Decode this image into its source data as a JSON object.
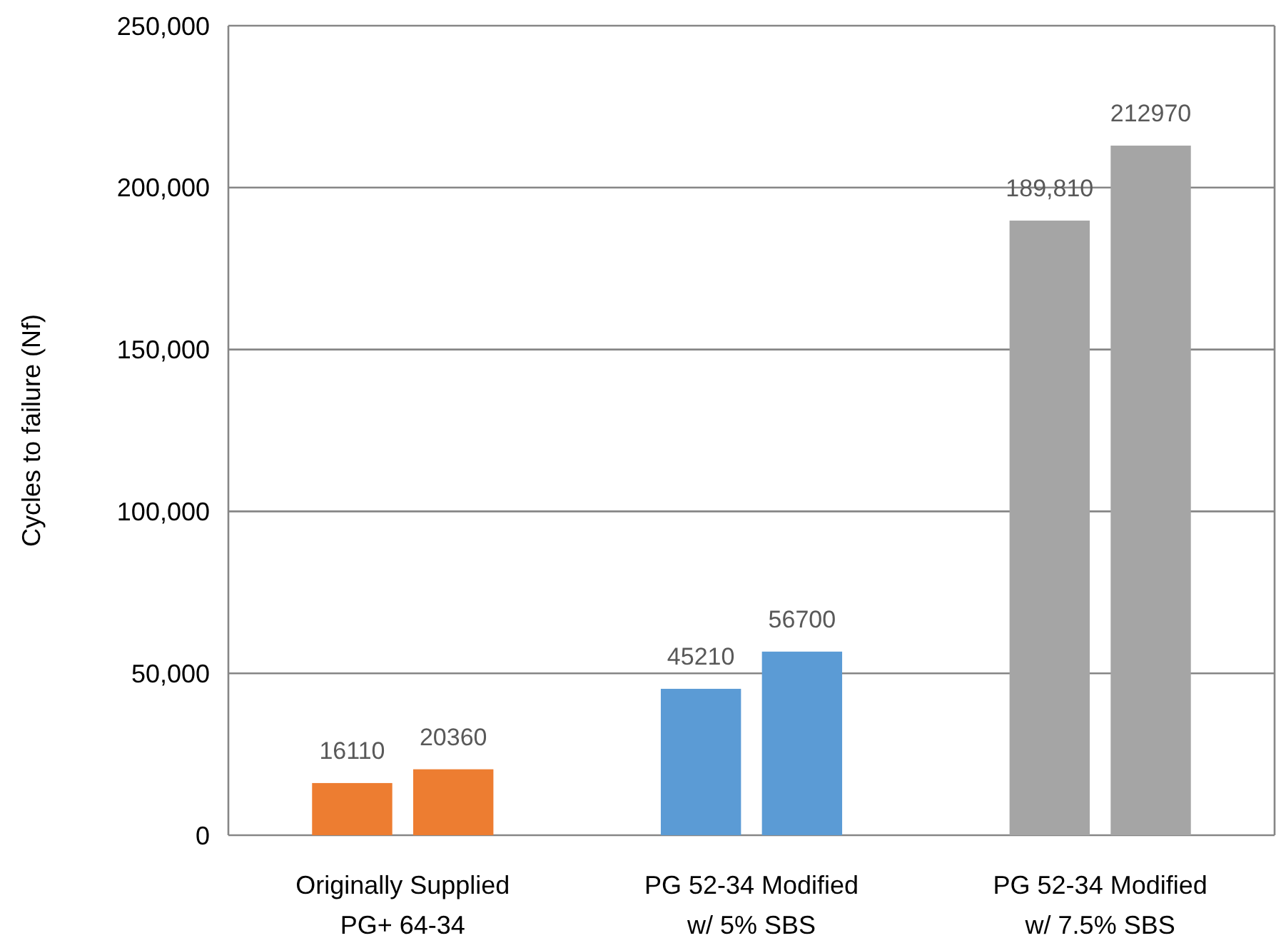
{
  "chart_data": {
    "type": "bar",
    "ylabel": "Cycles to failure (Nf)",
    "categories": [
      "Originally Supplied\nPG+ 64-34",
      "PG 52-34 Modified\nw/ 5% SBS",
      "PG 52-34 Modified\nw/ 7.5% SBS"
    ],
    "series": [
      {
        "colors": [
          "#ed7d31",
          "#5b9bd5",
          "#a5a5a5"
        ],
        "values": [
          16110,
          45210,
          189810
        ],
        "value_labels": [
          "16110",
          "45210",
          "189,810"
        ]
      },
      {
        "colors": [
          "#ed7d31",
          "#5b9bd5",
          "#a5a5a5"
        ],
        "values": [
          20360,
          56700,
          212970
        ],
        "value_labels": [
          "20360",
          "56700",
          "212970"
        ]
      }
    ],
    "ylim": [
      0,
      250000
    ],
    "yticks": [
      {
        "value": 0,
        "label": "0"
      },
      {
        "value": 50000,
        "label": "50,000"
      },
      {
        "value": 100000,
        "label": "100,000"
      },
      {
        "value": 150000,
        "label": "150,000"
      },
      {
        "value": 200000,
        "label": "200,000"
      },
      {
        "value": 250000,
        "label": "250,000"
      }
    ],
    "grid": "y"
  }
}
